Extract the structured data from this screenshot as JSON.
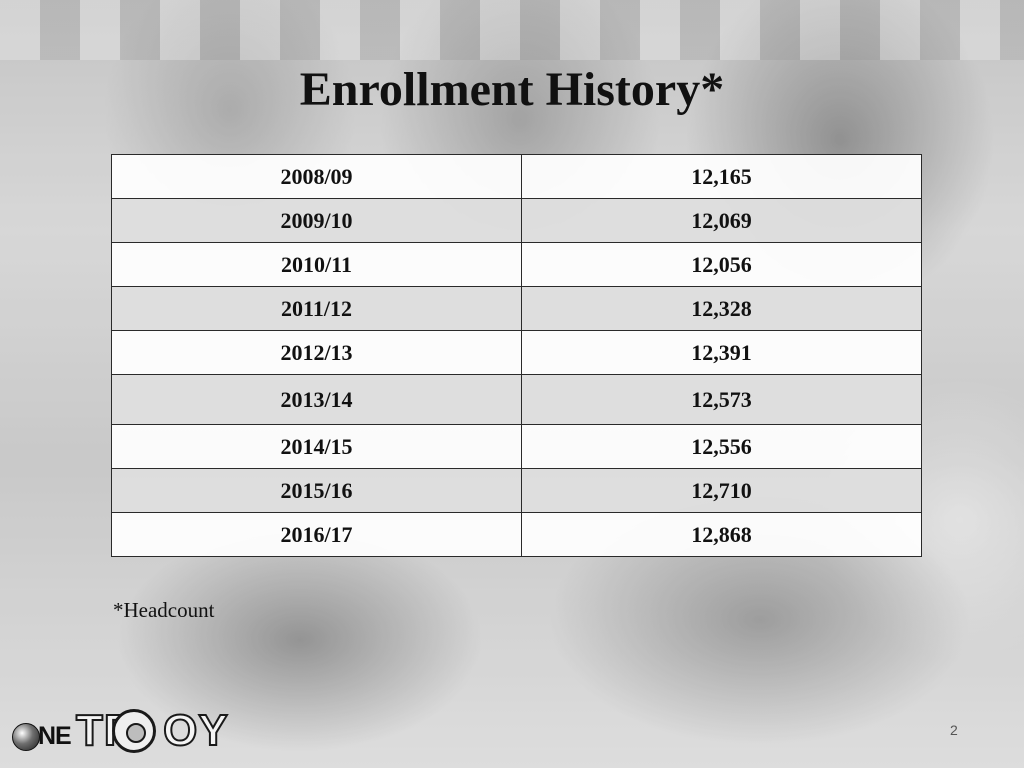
{
  "slide": {
    "title": "Enrollment History*",
    "footnote": "*Headcount",
    "page_number": "2",
    "logo": {
      "name": "ONE TROY School District logo",
      "text": "ONETROY"
    }
  },
  "table": {
    "rows": [
      {
        "year": "2008/09",
        "count": "12,165"
      },
      {
        "year": "2009/10",
        "count": "12,069"
      },
      {
        "year": "2010/11",
        "count": "12,056"
      },
      {
        "year": "2011/12",
        "count": "12,328"
      },
      {
        "year": "2012/13",
        "count": "12,391"
      },
      {
        "year": "2013/14",
        "count": "12,573"
      },
      {
        "year": "2014/15",
        "count": "12,556"
      },
      {
        "year": "2015/16",
        "count": "12,710"
      },
      {
        "year": "2016/17",
        "count": "12,868"
      }
    ]
  }
}
